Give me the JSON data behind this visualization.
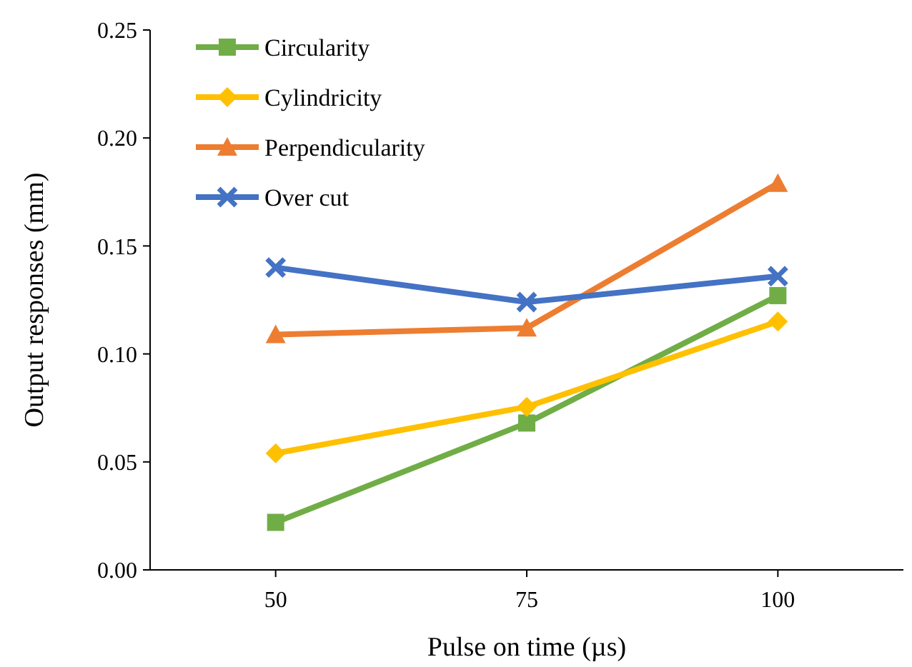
{
  "chart_data": {
    "type": "line",
    "xlabel": "Pulse on time (µs)",
    "ylabel": "Output responses (mm)",
    "categories": [
      "50",
      "75",
      "100"
    ],
    "ylim": [
      0,
      0.25
    ],
    "yticks": [
      {
        "value": 0,
        "label": "0.00"
      },
      {
        "value": 0.05,
        "label": "0.05"
      },
      {
        "value": 0.1,
        "label": "0.10"
      },
      {
        "value": 0.15,
        "label": "0.15"
      },
      {
        "value": 0.2,
        "label": "0.20"
      },
      {
        "value": 0.25,
        "label": "0.25"
      }
    ],
    "grid": false,
    "legend": "top left",
    "line_style": "solid",
    "series": [
      {
        "name": "Circularity",
        "color": "#70ad47",
        "marker": "square",
        "values": [
          0.022,
          0.068,
          0.127
        ]
      },
      {
        "name": "Cylindricity",
        "color": "#ffc000",
        "marker": "diamond",
        "values": [
          0.054,
          0.0755,
          0.115
        ]
      },
      {
        "name": "Perpendicularity",
        "color": "#ed7d31",
        "marker": "triangle",
        "values": [
          0.109,
          0.112,
          0.179
        ]
      },
      {
        "name": "Over cut",
        "color": "#4472c4",
        "marker": "cross",
        "values": [
          0.14,
          0.124,
          0.136
        ]
      }
    ]
  }
}
